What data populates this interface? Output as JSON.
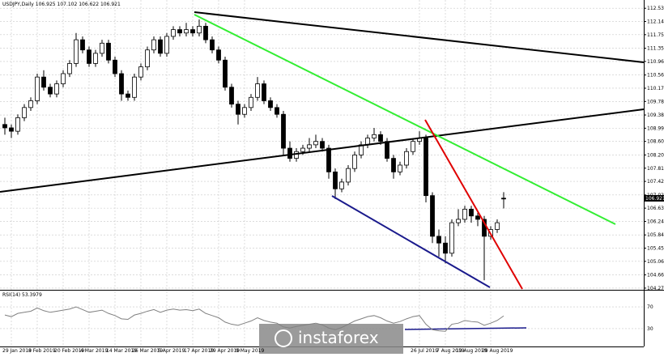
{
  "chart_data": {
    "type": "candlestick",
    "symbol": "USDJPY,Daily",
    "categories": [
      null,
      "29 Jan 2019",
      null,
      null,
      null,
      "8 Feb 2019",
      null,
      null,
      null,
      "20 Feb 2019",
      null,
      null,
      null,
      "4 Mar 2019",
      null,
      null,
      null,
      "14 Mar 2019",
      null,
      null,
      null,
      "26 Mar 2019",
      null,
      null,
      null,
      "5 Apr 2019",
      null,
      null,
      null,
      "17 Apr 2019",
      null,
      null,
      null,
      "29 Apr 2019",
      null,
      null,
      null,
      "9 May 2019",
      null,
      null,
      null,
      null,
      null,
      null,
      null,
      null,
      null,
      null,
      null,
      null,
      null,
      null,
      null,
      null,
      null,
      null,
      null,
      null,
      null,
      null,
      null,
      null,
      null,
      null,
      "26 Jul 2019",
      null,
      null,
      null,
      "7 Aug 2019",
      null,
      null,
      "19 Aug 2019",
      null,
      null,
      null,
      "29 Aug 2019",
      null,
      null
    ],
    "open": [
      109.1,
      109.0,
      108.9,
      109.3,
      109.6,
      109.8,
      110.5,
      110.2,
      110.0,
      110.3,
      110.6,
      110.9,
      111.6,
      111.3,
      110.9,
      111.2,
      111.5,
      111.0,
      110.6,
      110.0,
      109.9,
      110.5,
      110.8,
      111.3,
      111.6,
      111.2,
      111.7,
      111.9,
      111.8,
      111.9,
      111.8,
      112.0,
      111.6,
      111.3,
      111.0,
      110.2,
      109.7,
      109.4,
      109.6,
      109.9,
      110.3,
      109.8,
      109.6,
      109.4,
      108.4,
      108.1,
      108.3,
      108.4,
      108.5,
      108.6,
      108.4,
      107.7,
      107.2,
      107.4,
      107.8,
      108.2,
      108.5,
      108.7,
      108.8,
      108.6,
      108.1,
      107.7,
      107.9,
      108.3,
      108.6,
      108.7,
      107.0,
      105.8,
      105.6,
      105.3,
      106.2,
      106.3,
      106.6,
      106.4,
      106.3,
      105.8,
      106.0,
      106.925
    ],
    "high": [
      109.3,
      109.1,
      109.4,
      109.7,
      109.9,
      110.6,
      110.7,
      110.3,
      110.4,
      110.7,
      111.0,
      111.8,
      111.7,
      111.4,
      111.3,
      111.6,
      111.6,
      111.1,
      110.7,
      110.1,
      110.6,
      110.9,
      111.4,
      111.7,
      111.7,
      111.8,
      112.0,
      112.0,
      112.1,
      112.0,
      112.2,
      112.1,
      111.7,
      111.4,
      111.1,
      110.3,
      109.8,
      109.7,
      110.0,
      110.5,
      110.4,
      109.9,
      109.7,
      109.5,
      108.6,
      108.4,
      108.5,
      108.7,
      108.8,
      108.7,
      108.5,
      107.8,
      107.5,
      107.9,
      108.3,
      108.6,
      108.8,
      109.0,
      108.9,
      108.7,
      108.2,
      108.0,
      108.4,
      108.7,
      108.9,
      108.8,
      107.1,
      106.0,
      105.8,
      106.3,
      106.6,
      106.7,
      106.7,
      106.5,
      106.4,
      106.1,
      106.3,
      107.102
    ],
    "low": [
      108.8,
      108.7,
      108.8,
      109.2,
      109.5,
      109.7,
      110.1,
      109.9,
      109.9,
      110.2,
      110.5,
      110.8,
      111.2,
      110.8,
      110.8,
      111.1,
      110.9,
      110.5,
      109.8,
      109.8,
      109.8,
      110.4,
      110.7,
      111.2,
      111.1,
      111.1,
      111.6,
      111.7,
      111.7,
      111.7,
      111.7,
      111.5,
      111.2,
      110.9,
      110.1,
      109.6,
      109.1,
      109.3,
      109.5,
      109.8,
      109.7,
      109.5,
      109.3,
      108.2,
      108.0,
      108.0,
      108.2,
      108.3,
      108.4,
      108.3,
      107.5,
      106.9,
      107.1,
      107.3,
      107.7,
      108.1,
      108.4,
      108.6,
      108.5,
      108.0,
      107.5,
      107.6,
      107.8,
      108.2,
      108.5,
      106.8,
      105.6,
      105.2,
      105.0,
      105.2,
      106.1,
      106.2,
      106.2,
      106.1,
      104.5,
      105.7,
      105.9,
      106.622
    ],
    "close": [
      109.0,
      108.9,
      109.3,
      109.6,
      109.8,
      110.5,
      110.2,
      110.0,
      110.3,
      110.6,
      110.9,
      111.6,
      111.3,
      110.9,
      111.2,
      111.5,
      111.0,
      110.6,
      110.0,
      109.9,
      110.5,
      110.8,
      111.3,
      111.6,
      111.2,
      111.7,
      111.9,
      111.8,
      111.9,
      111.8,
      112.0,
      111.6,
      111.3,
      111.0,
      110.2,
      109.7,
      109.4,
      109.6,
      109.9,
      110.3,
      109.8,
      109.6,
      109.4,
      108.4,
      108.1,
      108.3,
      108.4,
      108.5,
      108.6,
      108.4,
      107.7,
      107.2,
      107.4,
      107.8,
      108.2,
      108.5,
      108.7,
      108.8,
      108.6,
      108.1,
      107.7,
      107.9,
      108.3,
      108.6,
      108.7,
      107.0,
      105.8,
      105.6,
      105.3,
      106.2,
      106.3,
      106.6,
      106.4,
      106.3,
      105.8,
      106.0,
      106.2,
      106.921
    ],
    "ylim": [
      104.22,
      112.75
    ],
    "yticks": [
      {
        "value": 112.53,
        "label": "112.530"
      },
      {
        "value": 112.14,
        "label": "112.140"
      },
      {
        "value": 111.75,
        "label": "111.750"
      },
      {
        "value": 111.35,
        "label": "111.350"
      },
      {
        "value": 110.96,
        "label": "110.960"
      },
      {
        "value": 110.56,
        "label": "110.560"
      },
      {
        "value": 110.17,
        "label": "110.170"
      },
      {
        "value": 109.78,
        "label": "109.780"
      },
      {
        "value": 109.38,
        "label": "109.380"
      },
      {
        "value": 108.99,
        "label": "108.990"
      },
      {
        "value": 108.6,
        "label": "108.600"
      },
      {
        "value": 108.2,
        "label": "108.200"
      },
      {
        "value": 107.81,
        "label": "107.810"
      },
      {
        "value": 107.42,
        "label": "107.420"
      },
      {
        "value": 107.02,
        "label": "107.020"
      },
      {
        "value": 106.63,
        "label": "106.630"
      },
      {
        "value": 106.24,
        "label": "106.240"
      },
      {
        "value": 105.84,
        "label": "105.840"
      },
      {
        "value": 105.45,
        "label": "105.450"
      },
      {
        "value": 105.06,
        "label": "105.060"
      },
      {
        "value": 104.66,
        "label": "104.660"
      },
      {
        "value": 104.27,
        "label": "104.270"
      }
    ],
    "grid": true,
    "rsi": {
      "title": "RSI(14)",
      "values": [
        55,
        52,
        58,
        60,
        62,
        68,
        63,
        60,
        62,
        64,
        66,
        70,
        65,
        60,
        62,
        64,
        58,
        54,
        48,
        47,
        55,
        58,
        62,
        65,
        60,
        64,
        66,
        64,
        65,
        63,
        66,
        58,
        54,
        50,
        42,
        38,
        36,
        40,
        44,
        50,
        45,
        42,
        40,
        33,
        31,
        34,
        36,
        38,
        40,
        37,
        31,
        28,
        32,
        38,
        44,
        48,
        52,
        54,
        50,
        44,
        40,
        43,
        48,
        52,
        54,
        38,
        28,
        26,
        25,
        38,
        40,
        45,
        43,
        42,
        36,
        40,
        45,
        53.3979
      ],
      "ylim": [
        0,
        100
      ],
      "yticks": [
        70,
        30
      ]
    },
    "watermark": "instaforex"
  }
}
